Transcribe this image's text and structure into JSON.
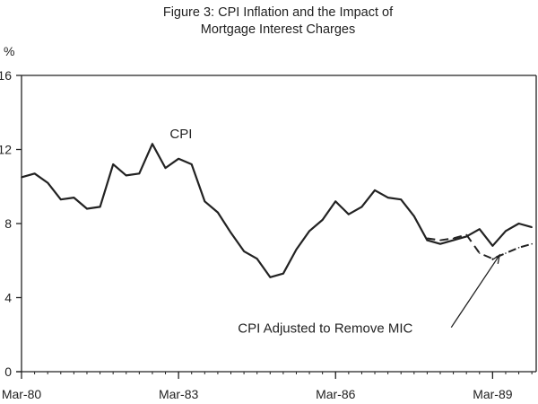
{
  "chart_data": {
    "type": "line",
    "title": "Figure 3: CPI Inflation and the Impact of",
    "subtitle": "Mortgage Interest Charges",
    "ylabel": "%",
    "xlabel": "",
    "ylim": [
      0,
      16
    ],
    "xlim": [
      1980.167,
      1990.0
    ],
    "yticks": [
      0,
      4,
      8,
      12,
      16
    ],
    "ytick_labels": [
      "0",
      "4",
      "8",
      "12",
      "16"
    ],
    "xticks": [
      1980.167,
      1983.167,
      1986.167,
      1989.167
    ],
    "xtick_labels": [
      "Mar-80",
      "Mar-83",
      "Mar-86",
      "Mar-89"
    ],
    "grid": false,
    "series": [
      {
        "name": "CPI",
        "style": "solid",
        "x": [
          1980.167,
          1980.417,
          1980.667,
          1980.917,
          1981.167,
          1981.417,
          1981.667,
          1981.917,
          1982.167,
          1982.417,
          1982.667,
          1982.917,
          1983.167,
          1983.417,
          1983.667,
          1983.917,
          1984.167,
          1984.417,
          1984.667,
          1984.917,
          1985.167,
          1985.417,
          1985.667,
          1985.917,
          1986.167,
          1986.417,
          1986.667,
          1986.917,
          1987.167,
          1987.417,
          1987.667,
          1987.917,
          1988.167,
          1988.417,
          1988.667,
          1988.917,
          1989.167,
          1989.417,
          1989.667,
          1989.917
        ],
        "values": [
          10.5,
          10.7,
          10.2,
          9.3,
          9.4,
          8.8,
          8.9,
          11.2,
          10.6,
          10.7,
          12.3,
          11.0,
          11.5,
          11.2,
          9.2,
          8.6,
          7.5,
          6.5,
          6.1,
          5.1,
          5.3,
          6.6,
          7.6,
          8.2,
          9.2,
          8.5,
          8.9,
          9.8,
          9.4,
          9.3,
          8.4,
          7.1,
          6.9,
          7.1,
          7.3,
          7.7,
          6.8,
          7.6,
          8.0,
          7.8
        ]
      },
      {
        "name": "CPI Adjusted to Remove MIC",
        "style": "dashed",
        "x": [
          1987.917,
          1988.167,
          1988.417,
          1988.667,
          1988.917,
          1989.167,
          1989.417,
          1989.667,
          1989.917
        ],
        "values": [
          7.2,
          7.1,
          7.2,
          7.4,
          6.4,
          6.1,
          6.4,
          6.7,
          6.9
        ]
      }
    ],
    "annotations": [
      {
        "text": "CPI",
        "x": 1983.0,
        "y": 12.6
      },
      {
        "text": "CPI Adjusted to Remove MIC",
        "x": 1984.3,
        "y": 2.1,
        "arrow_to": {
          "x": 1989.3,
          "y": 6.3
        }
      }
    ]
  }
}
